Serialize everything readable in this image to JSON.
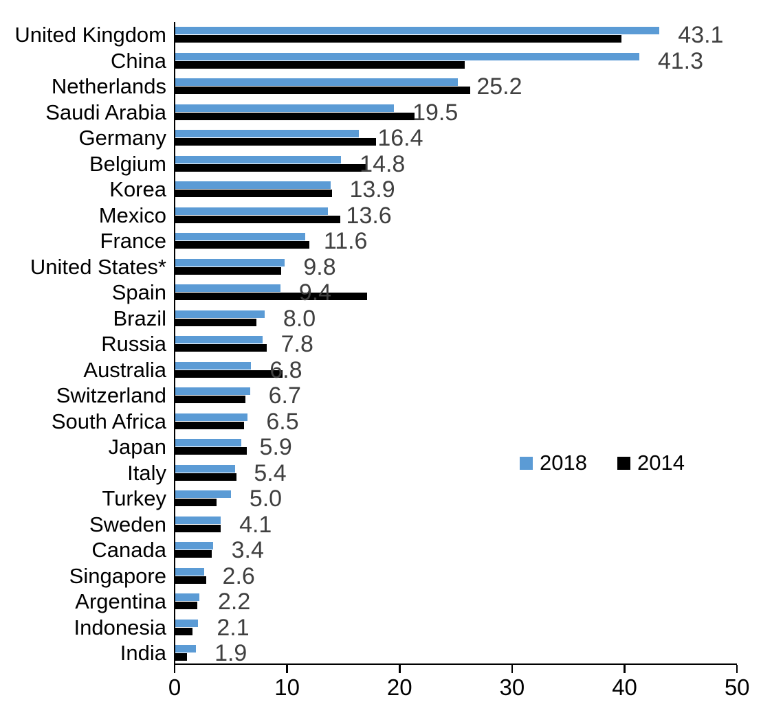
{
  "chart_data": {
    "type": "bar",
    "orientation": "horizontal",
    "title": "",
    "xlabel": "",
    "ylabel": "",
    "xlim": [
      0,
      50
    ],
    "x_ticks": [
      0,
      10,
      20,
      30,
      40,
      50
    ],
    "grid": false,
    "legend_position": "middle-right",
    "categories": [
      "United Kingdom",
      "China",
      "Netherlands",
      "Saudi Arabia",
      "Germany",
      "Belgium",
      "Korea",
      "Mexico",
      "France",
      "United States*",
      "Spain",
      "Brazil",
      "Russia",
      "Australia",
      "Switzerland",
      "South Africa",
      "Japan",
      "Italy",
      "Turkey",
      "Sweden",
      "Canada",
      "Singapore",
      "Argentina",
      "Indonesia",
      "India"
    ],
    "series": [
      {
        "name": "2018",
        "color": "#5B9BD5",
        "values": [
          43.1,
          41.3,
          25.2,
          19.5,
          16.4,
          14.8,
          13.9,
          13.6,
          11.6,
          9.8,
          9.4,
          8.0,
          7.8,
          6.8,
          6.7,
          6.5,
          5.9,
          5.4,
          5.0,
          4.1,
          3.4,
          2.6,
          2.2,
          2.1,
          1.9
        ]
      },
      {
        "name": "2014",
        "color": "#000000",
        "values": [
          39.7,
          25.8,
          26.3,
          21.3,
          17.9,
          17.1,
          14.0,
          14.7,
          12.0,
          9.5,
          17.1,
          7.3,
          8.2,
          9.6,
          6.3,
          6.2,
          6.4,
          5.5,
          3.7,
          4.1,
          3.3,
          2.8,
          2.0,
          1.6,
          1.1
        ]
      }
    ],
    "data_labels": [
      "43.1",
      "41.3",
      "25.2",
      "19.5",
      "16.4",
      "14.8",
      "13.9",
      "13.6",
      "11.6",
      "9.8",
      "9.4",
      "8.0",
      "7.8",
      "6.8",
      "6.7",
      "6.5",
      "5.9",
      "5.4",
      "5.0",
      "4.1",
      "3.4",
      "2.6",
      "2.2",
      "2.1",
      "1.9"
    ],
    "data_label_series": "2018",
    "data_label_color": "#404040"
  }
}
